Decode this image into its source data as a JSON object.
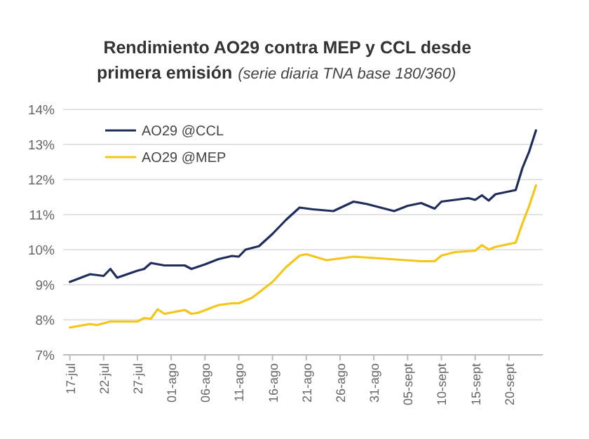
{
  "chart_data": {
    "type": "line",
    "title": "Rendimiento AO29 contra MEP y CCL desde primera emisión",
    "subtitle": "(serie diaria TNA base 180/360)",
    "series": [
      {
        "name": "AO29 @CCL",
        "color": "#1f2d5c",
        "x": [
          "--07-17",
          "--07-20",
          "--07-22",
          "--07-23",
          "--07-24",
          "--07-27",
          "--07-28",
          "--07-29",
          "--07-31",
          "--08-03",
          "--08-04",
          "--08-06",
          "--08-08",
          "--08-10",
          "--08-11",
          "--08-12",
          "--08-14",
          "--08-16",
          "--08-18",
          "--08-20",
          "--08-22",
          "--08-25",
          "--08-28",
          "--08-30",
          "--09-01",
          "--09-03",
          "--09-05",
          "--09-07",
          "--09-09",
          "--09-10",
          "--09-14",
          "--09-15",
          "--09-16",
          "--09-17",
          "--09-18",
          "--09-21",
          "--09-22",
          "--09-23",
          "--09-24"
        ],
        "values": [
          9.08,
          9.3,
          9.25,
          9.45,
          9.2,
          9.4,
          9.45,
          9.62,
          9.55,
          9.55,
          9.45,
          9.58,
          9.73,
          9.82,
          9.8,
          10.0,
          10.1,
          10.45,
          10.85,
          11.2,
          11.15,
          11.1,
          11.37,
          11.3,
          11.2,
          11.1,
          11.25,
          11.33,
          11.17,
          11.37,
          11.47,
          11.42,
          11.55,
          11.4,
          11.58,
          11.7,
          12.33,
          12.8,
          13.4
        ]
      },
      {
        "name": "AO29 @MEP",
        "color": "#f5c518",
        "x": [
          "--07-17",
          "--07-20",
          "--07-21",
          "--07-23",
          "--07-27",
          "--07-28",
          "--07-29",
          "--07-30",
          "--07-31",
          "--08-03",
          "--08-04",
          "--08-05",
          "--08-08",
          "--08-10",
          "--08-11",
          "--08-13",
          "--08-16",
          "--08-18",
          "--08-20",
          "--08-21",
          "--08-24",
          "--08-26",
          "--08-28",
          "--09-01",
          "--09-07",
          "--09-09",
          "--09-10",
          "--09-12",
          "--09-15",
          "--09-16",
          "--09-17",
          "--09-18",
          "--09-21",
          "--09-22",
          "--09-23",
          "--09-24"
        ],
        "values": [
          7.78,
          7.88,
          7.85,
          7.95,
          7.95,
          8.05,
          8.03,
          8.3,
          8.17,
          8.28,
          8.17,
          8.2,
          8.42,
          8.47,
          8.47,
          8.63,
          9.08,
          9.5,
          9.83,
          9.87,
          9.7,
          9.75,
          9.8,
          9.75,
          9.67,
          9.67,
          9.83,
          9.93,
          9.97,
          10.13,
          10.0,
          10.08,
          10.2,
          10.75,
          11.25,
          11.83
        ]
      }
    ],
    "xlim": [
      "--07-16",
      "--09-25"
    ],
    "xticks": [
      {
        "value": "--07-17",
        "label": "17-jul"
      },
      {
        "value": "--07-22",
        "label": "22-jul"
      },
      {
        "value": "--07-27",
        "label": "27-jul"
      },
      {
        "value": "--08-01",
        "label": "01-ago"
      },
      {
        "value": "--08-06",
        "label": "06-ago"
      },
      {
        "value": "--08-11",
        "label": "11-ago"
      },
      {
        "value": "--08-16",
        "label": "16-ago"
      },
      {
        "value": "--08-21",
        "label": "21-ago"
      },
      {
        "value": "--08-26",
        "label": "26-ago"
      },
      {
        "value": "--08-31",
        "label": "31-ago"
      },
      {
        "value": "--09-05",
        "label": "05-sept"
      },
      {
        "value": "--09-10",
        "label": "10-sept"
      },
      {
        "value": "--09-15",
        "label": "15-sept"
      },
      {
        "value": "--09-20",
        "label": "20-sept"
      }
    ],
    "ylim": [
      7,
      14
    ],
    "yticks": [
      {
        "value": 7,
        "label": "7%"
      },
      {
        "value": 8,
        "label": "8%"
      },
      {
        "value": 9,
        "label": "9%"
      },
      {
        "value": 10,
        "label": "10%"
      },
      {
        "value": 11,
        "label": "11%"
      },
      {
        "value": 12,
        "label": "12%"
      },
      {
        "value": 13,
        "label": "13%"
      },
      {
        "value": 14,
        "label": "14%"
      }
    ],
    "grid": "y",
    "legend": "top left",
    "marker": "none",
    "line_style": "solid"
  }
}
